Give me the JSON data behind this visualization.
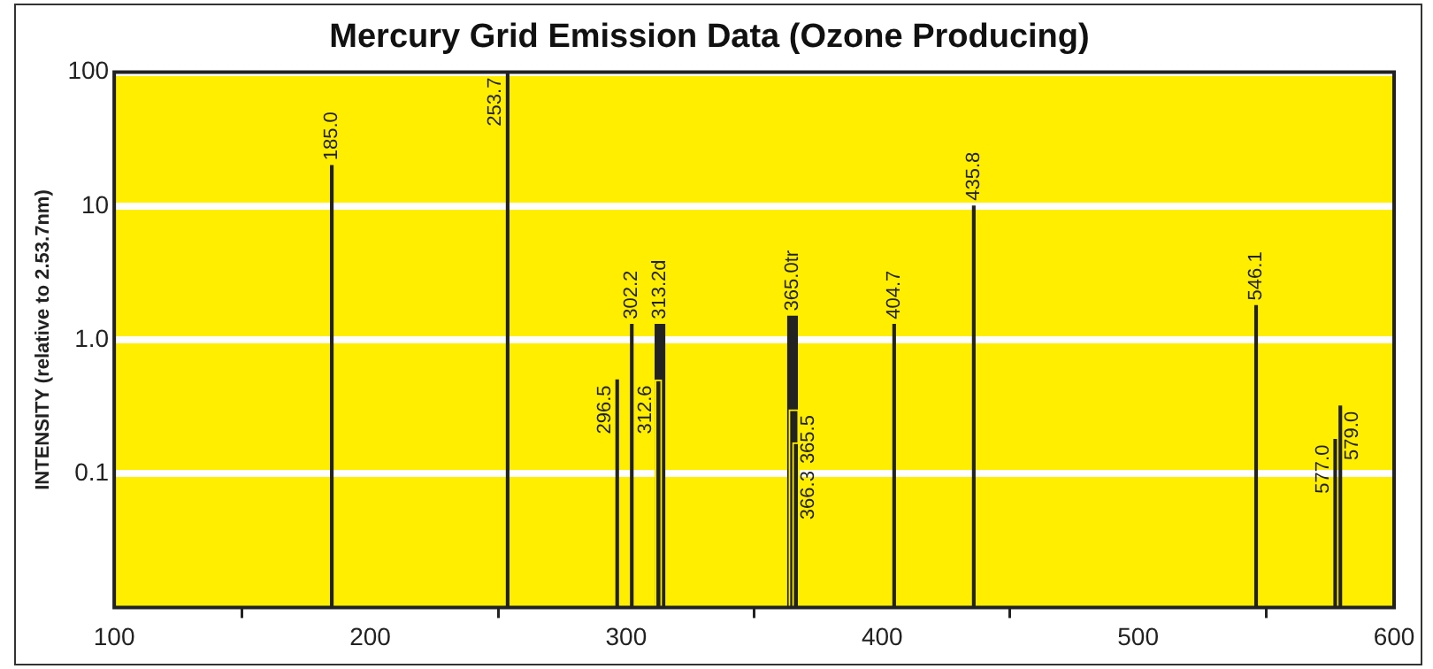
{
  "chart_data": {
    "type": "bar",
    "title": "Mercury Grid Emission Data (Ozone Producing)",
    "ylabel": "INTENSITY (relative to 2.53.7nm)",
    "x": [
      185.0,
      253.7,
      296.5,
      302.2,
      312.6,
      313.2,
      365.0,
      365.5,
      366.3,
      404.7,
      435.8,
      546.1,
      577.0,
      579.0
    ],
    "values": [
      20,
      100,
      0.5,
      1.3,
      0.5,
      1.3,
      1.5,
      0.3,
      0.17,
      1.3,
      10,
      1.8,
      0.18,
      0.32
    ],
    "color": "#222222",
    "log": "y",
    "grid": "y",
    "xlim": [
      100,
      600
    ],
    "xticks": [
      100,
      200,
      300,
      400,
      500,
      600
    ],
    "ylim": [
      0.01,
      100
    ],
    "yticks": [
      {
        "value": 0.1,
        "label": "0.1"
      },
      {
        "value": 1,
        "label": "1.0"
      },
      {
        "value": 10,
        "label": "10"
      },
      {
        "value": 100,
        "label": "100"
      }
    ],
    "annotations": [
      {
        "text": "185.0",
        "x": 185.0,
        "y": 20
      },
      {
        "text": "253.7",
        "x": 253.7,
        "y": 100
      },
      {
        "text": "296.5",
        "x": 296.5,
        "y": 0.5
      },
      {
        "text": "302.2",
        "x": 302.2,
        "y": 1.3
      },
      {
        "text": "312.6",
        "x": 312.6,
        "y": 0.5
      },
      {
        "text": "313.2d",
        "x": 313.2,
        "y": 1.3
      },
      {
        "text": "365.0tr",
        "x": 365.0,
        "y": 1.5
      },
      {
        "text": "365.5",
        "x": 365.5,
        "y": 0.3
      },
      {
        "text": "366.3",
        "x": 366.3,
        "y": 0.17
      },
      {
        "text": "404.7",
        "x": 404.7,
        "y": 1.3
      },
      {
        "text": "435.8",
        "x": 435.8,
        "y": 10
      },
      {
        "text": "546.1",
        "x": 546.1,
        "y": 1.8
      },
      {
        "text": "577.0",
        "x": 577.0,
        "y": 0.18
      },
      {
        "text": "579.0",
        "x": 579.0,
        "y": 0.32
      }
    ]
  }
}
